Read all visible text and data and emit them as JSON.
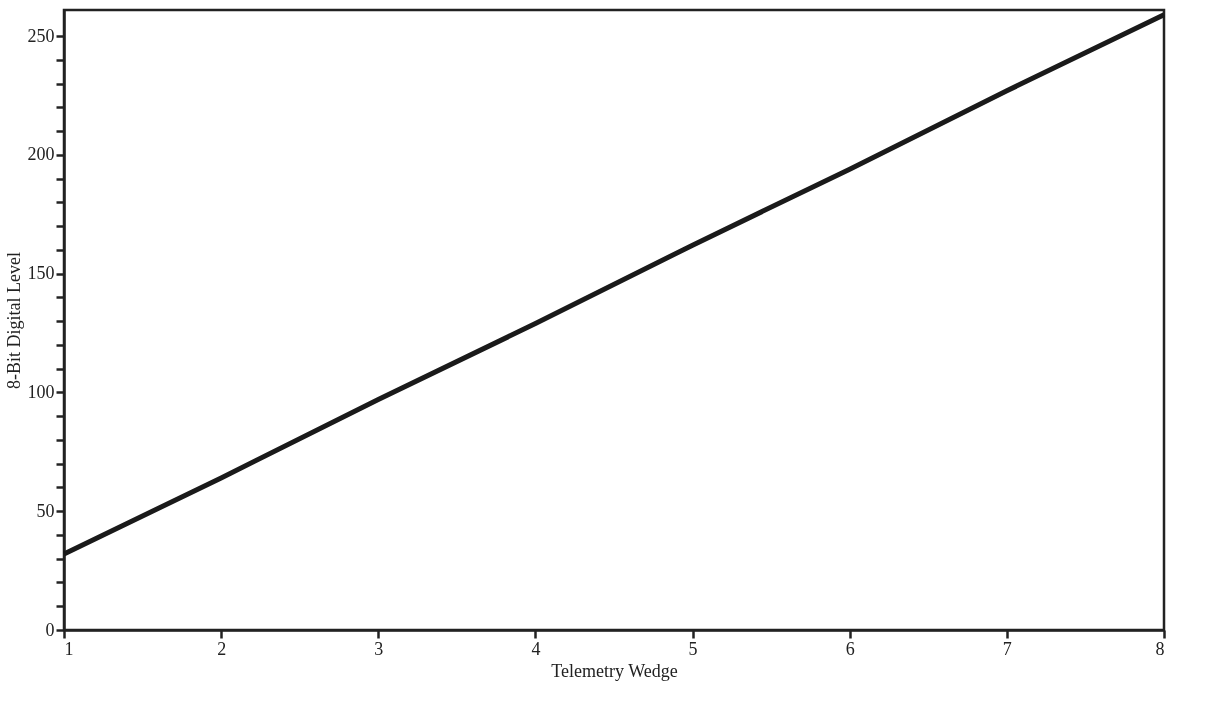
{
  "chart_data": {
    "type": "line",
    "xlabel": "Telemetry Wedge",
    "ylabel": "8-Bit Digital Level",
    "x": [
      1,
      2,
      3,
      4,
      5,
      6,
      7,
      8
    ],
    "series": [
      {
        "color": "#1a1a1a",
        "values": [
          32,
          64,
          97,
          129,
          162,
          194,
          227,
          259
        ]
      }
    ],
    "xlim": [
      1,
      8
    ],
    "xticks": [
      1,
      2,
      3,
      4,
      5,
      6,
      7,
      8
    ],
    "ylim": [
      0,
      261
    ],
    "yticks": [
      0,
      {
        "value": 10,
        "label": null
      },
      {
        "value": 20,
        "label": null
      },
      {
        "value": 30,
        "label": null
      },
      {
        "value": 40,
        "label": null
      },
      50,
      {
        "value": 60,
        "label": null
      },
      {
        "value": 70,
        "label": null
      },
      {
        "value": 80,
        "label": null
      },
      {
        "value": 90,
        "label": null
      },
      100,
      {
        "value": 110,
        "label": null
      },
      {
        "value": 120,
        "label": null
      },
      {
        "value": 130,
        "label": null
      },
      {
        "value": 140,
        "label": null
      },
      150,
      {
        "value": 160,
        "label": null
      },
      {
        "value": 170,
        "label": null
      },
      {
        "value": 180,
        "label": null
      },
      {
        "value": 190,
        "label": null
      },
      200,
      {
        "value": 210,
        "label": null
      },
      {
        "value": 220,
        "label": null
      },
      {
        "value": 230,
        "label": null
      },
      {
        "value": 240,
        "label": null
      },
      250
    ],
    "grid": false,
    "marker": "none",
    "line_style": "solid"
  }
}
